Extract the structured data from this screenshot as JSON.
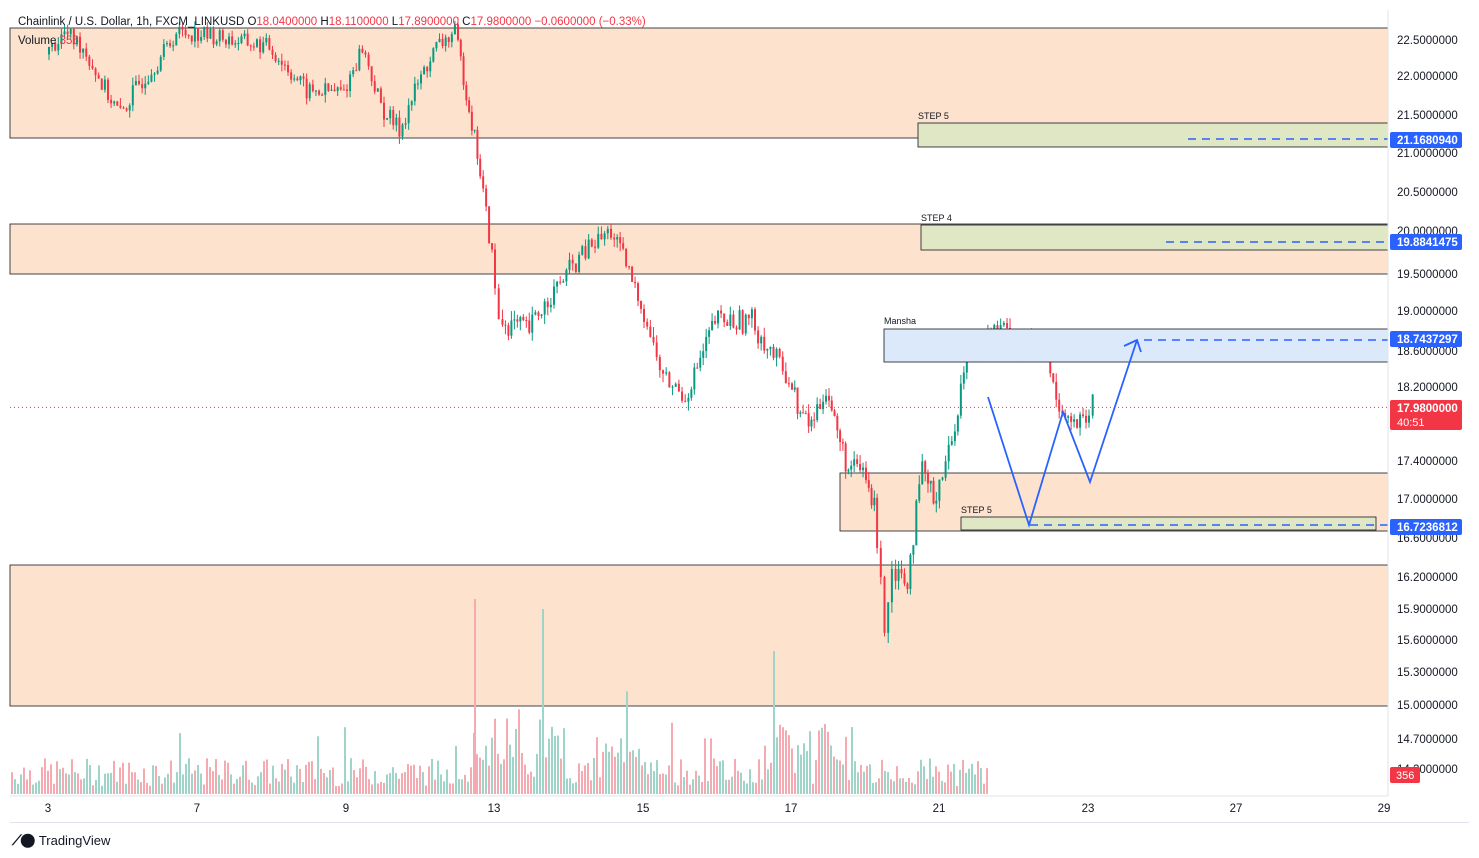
{
  "header": {
    "symbol": "Chainlink / U.S. Dollar, 1h, FXCM_LINKUSD",
    "open_label": "O",
    "open": "18.0400000",
    "high_label": "H",
    "high": "18.1100000",
    "low_label": "L",
    "low": "17.8900000",
    "close_label": "C",
    "close": "17.9800000",
    "change": "−0.0600000 (−0.33%)",
    "volume_label": "Volume",
    "volume_value": "356"
  },
  "branding": {
    "name": "TradingView",
    "logo_icon": "tradingview-logo-icon"
  },
  "colors": {
    "up": "#089981",
    "down": "#f23645",
    "zone_fill": "#fde3cd",
    "step_fill": "#dfe7c4",
    "blue_zone": "#dbe9fb",
    "blue": "#2962ff"
  },
  "chart_data": {
    "type": "candlestick",
    "symbol": "LINKUSD",
    "interval": "1h",
    "y_axis": {
      "ticks": [
        "22.5000000",
        "22.0000000",
        "21.5000000",
        "21.0000000",
        "20.5000000",
        "20.0000000",
        "19.5000000",
        "19.0000000",
        "18.6000000",
        "18.2000000",
        "17.4000000",
        "17.0000000",
        "16.6000000",
        "16.2000000",
        "15.9000000",
        "15.6000000",
        "15.3000000",
        "15.0000000",
        "14.7000000",
        "14.2000000"
      ],
      "tick_values": [
        22.5,
        22.0,
        21.5,
        21.0,
        20.5,
        20.0,
        19.5,
        19.0,
        18.6,
        18.2,
        17.4,
        17.0,
        16.6,
        16.2,
        15.9,
        15.6,
        15.3,
        15.0,
        14.7,
        14.2
      ]
    },
    "x_axis": {
      "ticks": [
        "3",
        "7",
        "9",
        "13",
        "15",
        "17",
        "21",
        "23",
        "27",
        "29"
      ]
    },
    "price_path": [
      [
        3,
        22.3
      ],
      [
        3.5,
        22.6
      ],
      [
        4,
        22.4
      ],
      [
        4.5,
        21.9
      ],
      [
        5,
        21.5
      ],
      [
        5.5,
        21.9
      ],
      [
        6,
        22.2
      ],
      [
        6.5,
        22.6
      ],
      [
        7,
        22.6
      ],
      [
        7.5,
        22.5
      ],
      [
        8,
        22.4
      ],
      [
        8.5,
        21.8
      ],
      [
        9,
        21.8
      ],
      [
        9.5,
        22.4
      ],
      [
        10,
        21.6
      ],
      [
        10.5,
        21.3
      ],
      [
        11,
        21.9
      ],
      [
        11.5,
        22.4
      ],
      [
        12,
        22.6
      ],
      [
        12.3,
        21.8
      ],
      [
        12.6,
        21.0
      ],
      [
        13,
        19.7
      ],
      [
        13.1,
        18.9
      ],
      [
        13.5,
        18.8
      ],
      [
        14,
        19.5
      ],
      [
        14.3,
        19.8
      ],
      [
        14.6,
        20.0
      ],
      [
        14.8,
        19.6
      ],
      [
        15,
        19.1
      ],
      [
        15.3,
        18.3
      ],
      [
        15.6,
        18.1
      ],
      [
        16,
        18.9
      ],
      [
        16.5,
        18.9
      ],
      [
        17,
        18.3
      ],
      [
        17.3,
        17.9
      ],
      [
        17.6,
        17.8
      ],
      [
        18,
        18.2
      ],
      [
        18.3,
        17.7
      ],
      [
        18.6,
        17.3
      ],
      [
        19,
        17.3
      ],
      [
        19.3,
        16.9
      ],
      [
        19.5,
        16.3
      ],
      [
        19.6,
        15.7
      ],
      [
        19.8,
        16.3
      ],
      [
        20.2,
        16.2
      ],
      [
        20.6,
        17.3
      ],
      [
        20.9,
        17.0
      ],
      [
        21.2,
        17.6
      ],
      [
        21.4,
        18.6
      ],
      [
        21.6,
        18.7
      ],
      [
        21.9,
        18.8
      ],
      [
        22.1,
        18.6
      ],
      [
        22.4,
        18.7
      ],
      [
        22.6,
        18.1
      ],
      [
        22.8,
        17.8
      ],
      [
        23.0,
        17.8
      ],
      [
        23.2,
        18.0
      ]
    ],
    "volume_bars_approx": "random heights, peak near 13 and 14; last bar value 356",
    "current_price": "17.9800000",
    "countdown": "40:51",
    "volume_current": "356",
    "supply_demand_zones": [
      {
        "top": 22.7,
        "bottom": 21.2
      },
      {
        "top": 20.0,
        "bottom": 19.5
      },
      {
        "top": 17.3,
        "bottom": 16.7
      },
      {
        "top": 16.3,
        "bottom": 15.0
      }
    ],
    "step_boxes": [
      {
        "label": "STEP 5",
        "top": 21.3,
        "bottom": 21.15,
        "price_label": "21.1680940"
      },
      {
        "label": "STEP 4",
        "top": 20.0,
        "bottom": 19.85,
        "price_label": "19.8841475"
      },
      {
        "label": "STEP 5",
        "top": 16.85,
        "bottom": 16.72,
        "price_label": "16.7236812"
      }
    ],
    "blue_zone": {
      "label": "Mansha",
      "top": 18.85,
      "bottom": 18.55,
      "price_label": "18.7437297"
    },
    "projection_path": [
      [
        23.2,
        18.1
      ],
      [
        23.9,
        16.75
      ],
      [
        24.6,
        18.0
      ],
      [
        25.1,
        17.3
      ],
      [
        25.8,
        18.75
      ]
    ]
  }
}
